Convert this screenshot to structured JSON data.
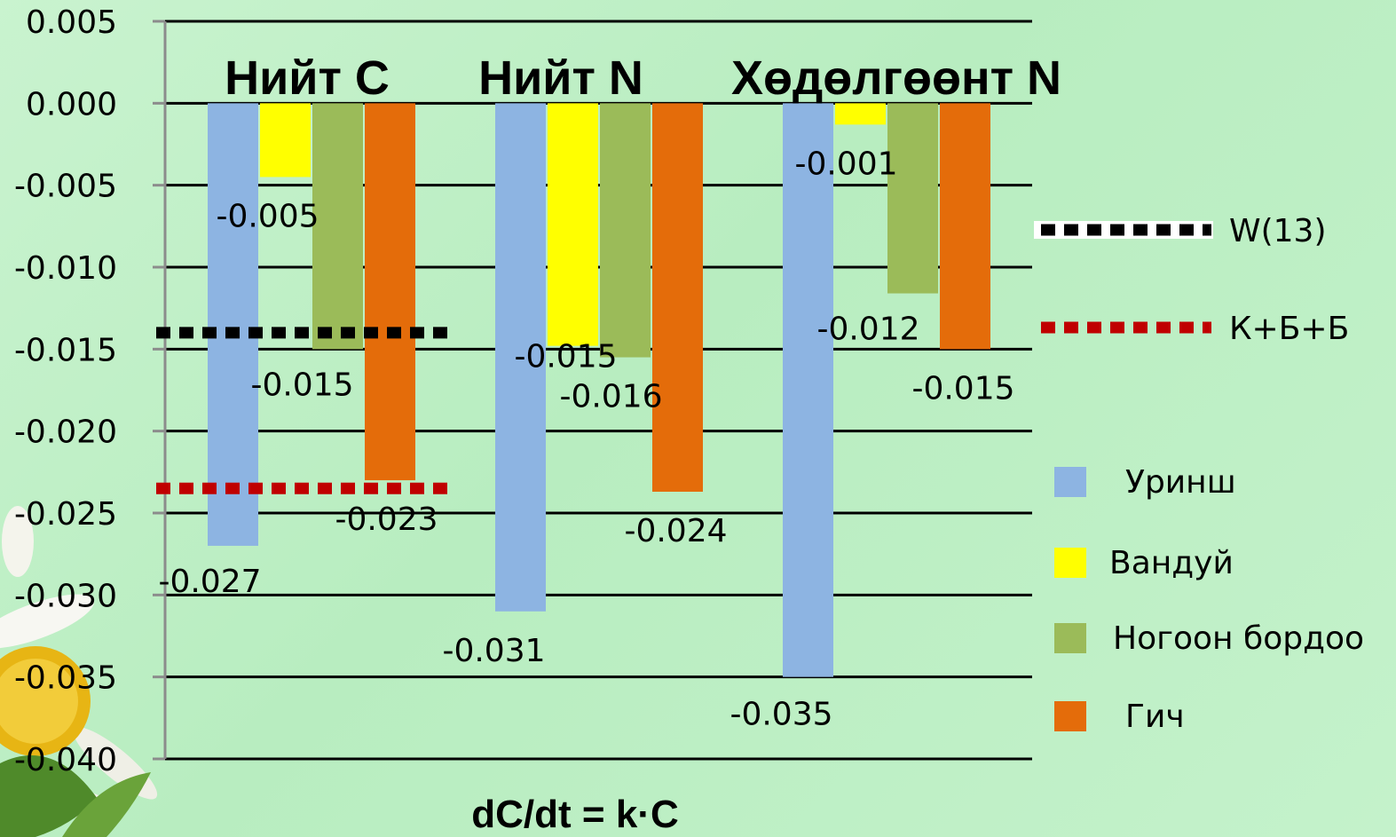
{
  "chart_data": {
    "type": "bar",
    "title": "",
    "xlabel": "dC/dt = k·C",
    "ylabel": "",
    "ylim": [
      -0.04,
      0.005
    ],
    "yticks": [
      "0.005",
      "0.000",
      "-0.005",
      "-0.010",
      "-0.015",
      "-0.020",
      "-0.025",
      "-0.030",
      "-0.035",
      "-0.040"
    ],
    "ytick_values": [
      0.005,
      0.0,
      -0.005,
      -0.01,
      -0.015,
      -0.02,
      -0.025,
      -0.03,
      -0.035,
      -0.04
    ],
    "grid": true,
    "legend_placement": "right",
    "categories": [
      "Нийт C",
      "Нийт N",
      "Хөдөлгөөнт N"
    ],
    "series": [
      {
        "name": "Уринш",
        "color": "#8db4e2",
        "values": [
          -0.027,
          -0.031,
          -0.035
        ],
        "labels": [
          "-0.027",
          "-0.031",
          "-0.035"
        ]
      },
      {
        "name": "Вандуй",
        "color": "#ffff00",
        "values": [
          -0.0045,
          -0.0148,
          -0.0013
        ],
        "labels": [
          "-0.005",
          "-0.015",
          "-0.001"
        ]
      },
      {
        "name": "Ногоон бордоо",
        "color": "#9bbb59",
        "values": [
          -0.015,
          -0.0155,
          -0.0116
        ],
        "labels": [
          "-0.015",
          "-0.016",
          "-0.012"
        ]
      },
      {
        "name": "Гич",
        "color": "#e46c0a",
        "values": [
          -0.023,
          -0.0237,
          -0.015
        ],
        "labels": [
          "-0.023",
          "-0.024",
          "-0.015"
        ]
      }
    ],
    "reference_lines": [
      {
        "name": "W(13)",
        "value": -0.014,
        "color": "#000000",
        "category_index": 0
      },
      {
        "name": "К+Б+Б",
        "value": -0.0235,
        "color": "#c00000",
        "category_index": 0
      }
    ]
  }
}
